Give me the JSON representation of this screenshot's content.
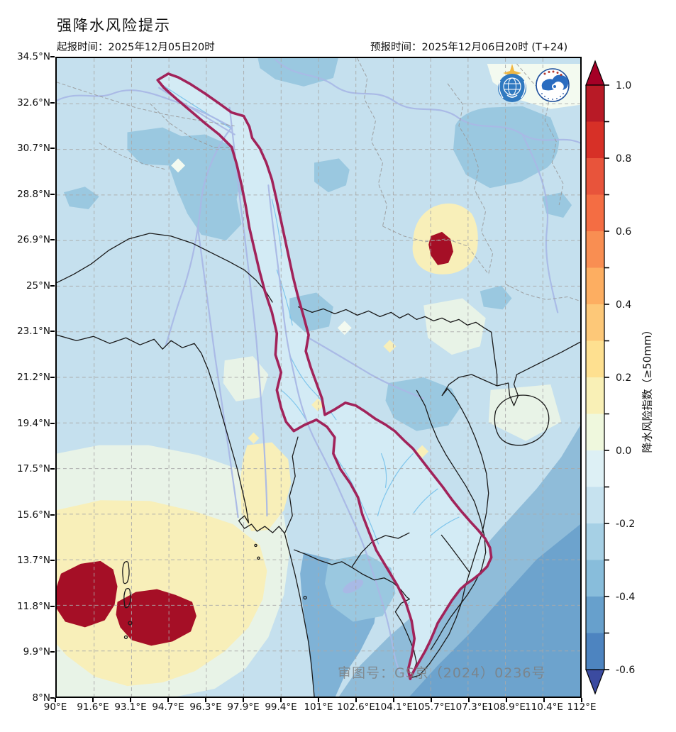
{
  "header": {
    "title": "强降水风险提示",
    "init_time_label": "起报时间：2025年12月05日20时",
    "forecast_time_label": "预报时间：2025年12月06日20时 (T+24)"
  },
  "map": {
    "watermark": "审图号：GS京（2024）0236号",
    "logos": {
      "left": "wmo-emblem",
      "right": "cma-emblem"
    }
  },
  "chart_data": {
    "type": "heatmap",
    "title": "强降水风险提示",
    "xlabel": "",
    "ylabel": "",
    "xlim": [
      90,
      112
    ],
    "ylim": [
      8,
      34.5
    ],
    "grid": true,
    "x_tick_labels": [
      "90°E",
      "91.6°E",
      "93.1°E",
      "94.7°E",
      "96.3°E",
      "97.9°E",
      "99.4°E",
      "101°E",
      "102.6°E",
      "104.1°E",
      "105.7°E",
      "107.3°E",
      "108.9°E",
      "110.4°E",
      "112°E"
    ],
    "y_tick_labels": [
      "34.5°N",
      "32.6°N",
      "30.7°N",
      "28.8°N",
      "26.9°N",
      "25°N",
      "23.1°N",
      "21.2°N",
      "19.4°N",
      "17.5°N",
      "15.6°N",
      "13.7°N",
      "11.8°N",
      "9.9°N",
      "8°N"
    ],
    "colorbar": {
      "label": "降水风险指数（≥50mm）",
      "range": [
        -0.6,
        1.0
      ],
      "extend": "both",
      "tick_labels": [
        "1.0",
        "0.8",
        "0.6",
        "0.4",
        "0.2",
        "0.0",
        "-0.2",
        "-0.4",
        "-0.6"
      ],
      "segment_colors_top_to_bottom": [
        "#b81a26",
        "#d73027",
        "#e8543b",
        "#f46d43",
        "#f98e52",
        "#fdae61",
        "#fdc878",
        "#fee090",
        "#f9f0b6",
        "#eff8dd",
        "#ddf0f5",
        "#c6e2ef",
        "#a6d0e5",
        "#88bddb",
        "#67a0cc",
        "#4d84c0"
      ],
      "arrow_top_color": "#a50026",
      "arrow_bottom_color": "#3b4ba0"
    },
    "palette": {
      "base": "#c5e0ee",
      "paleCyan": "#e8f3e7",
      "paleCyanLight": "#f3faf0",
      "paleYellow": "#f8efb9",
      "medBlue": "#9ac8e0",
      "medBlue2": "#7fb2d6",
      "seaBand": "#8fbcd9",
      "seaBandDark": "#6da3cd",
      "basinFill": "#d3ebf5",
      "highRiskRed": "#a50f26",
      "basinBoundary": "#a1235a",
      "riverMain": "#a9b9e6",
      "riverNet": "#7ec5ec",
      "coastline": "#1a1a1a",
      "gridline": "#a9a9a9",
      "provincial": "#999999"
    },
    "features": {
      "basin_outline": "Lancang-Mekong basin boundary (crimson)",
      "high_risk_zones": [
        {
          "approx_lon": 106.2,
          "approx_lat": 26.6,
          "risk_index": ">=1.0"
        },
        {
          "approx_lon": 91.2,
          "approx_lat": 11.6,
          "risk_index": ">=1.0"
        },
        {
          "approx_lon": 94.2,
          "approx_lat": 10.9,
          "risk_index": ">=1.0"
        }
      ],
      "moderate_risk_zones": [
        {
          "approx_lon": 106.2,
          "approx_lat": 27.0,
          "risk_index": "0.1~0.3"
        },
        {
          "approx_lon": 92.0,
          "approx_lat": 11.5,
          "risk_index": "0.1~0.2"
        },
        {
          "approx_lon": 98.7,
          "approx_lat": 17.0,
          "risk_index": "0.1~0.2"
        }
      ]
    }
  }
}
